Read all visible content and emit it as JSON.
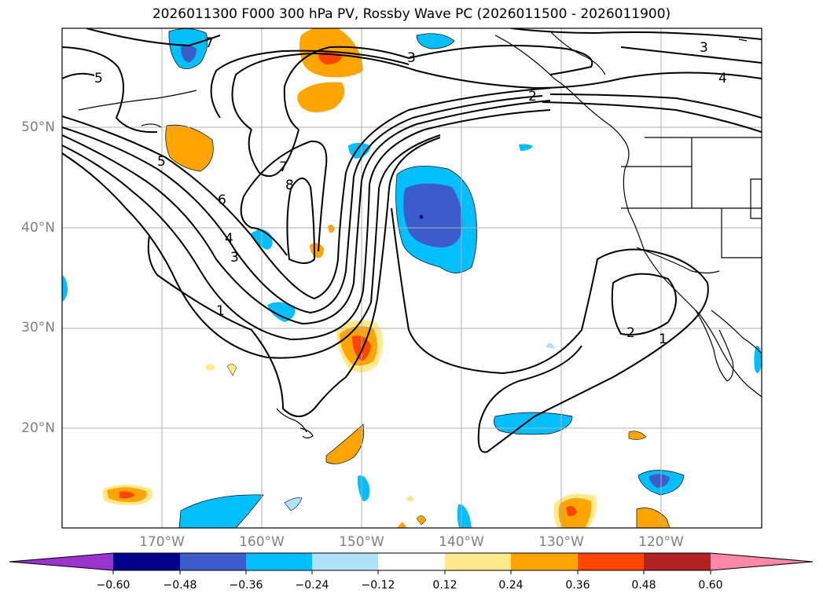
{
  "title": "2026011300 F000 300 hPa PV, Rossby Wave PC (2026011500 - 2026011900)",
  "lat_labels": [
    "50°N",
    "40°N",
    "30°N",
    "20°N"
  ],
  "lon_labels": [
    "170°W",
    "160°W",
    "150°W",
    "140°W",
    "130°W",
    "120°W"
  ],
  "contour_labels": [
    "7",
    "5",
    "3",
    "2",
    "4",
    "3",
    "5",
    "7",
    "8",
    "6",
    "4",
    "3",
    "1",
    "2",
    "1"
  ],
  "colorbar": {
    "ticks": [
      "−0.60",
      "−0.48",
      "−0.36",
      "−0.24",
      "−0.12",
      "0.12",
      "0.24",
      "0.36",
      "0.48",
      "0.60"
    ],
    "colors": [
      "#9933cc",
      "#00008b",
      "#3c5ccc",
      "#00bfff",
      "#aee3fa",
      "#ffffff",
      "#ffe98a",
      "#ffa500",
      "#ff4500",
      "#b22222",
      "#ff88aa"
    ]
  },
  "colors": {
    "grid": "#b0b0b0",
    "contour": "#000000",
    "coast": "#000000",
    "neg_light": "#aee3fa",
    "neg_mid": "#00bfff",
    "neg_strong": "#3c5ccc",
    "neg_max": "#00008b",
    "pos_light": "#ffe98a",
    "pos_mid": "#ffa500",
    "pos_strong": "#ff4500"
  }
}
